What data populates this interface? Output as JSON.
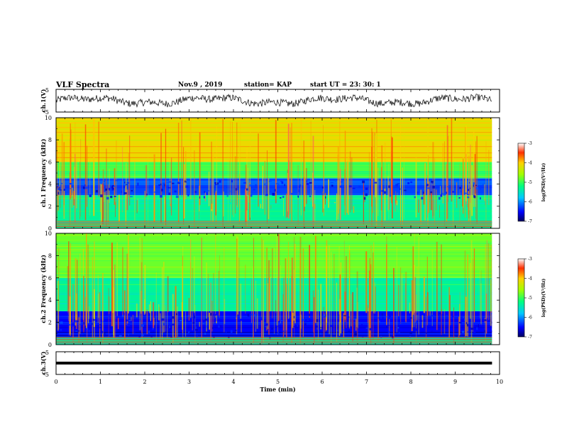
{
  "header": {
    "title": "VLF Spectra",
    "date": "Nov.9 , 2019",
    "station": "station= KAP",
    "start": "start UT = 23: 30: 1"
  },
  "chart_data": [
    {
      "type": "line",
      "title": "",
      "ylabel": "ch.1(V)",
      "ylim": [
        -5,
        5
      ],
      "yticks": [
        "5",
        "-5"
      ],
      "xlim": [
        0,
        10
      ],
      "series": [
        {
          "values_description_none": ""
        }
      ]
    },
    {
      "type": "heatmap",
      "ylabel": "ch.1 Frequency (kHz)",
      "ylim": [
        0,
        10
      ],
      "yticks": [
        "0",
        "2",
        "4",
        "6",
        "8",
        "10"
      ],
      "xlim": [
        0,
        10
      ],
      "data_end_min": 9.83,
      "colorbar": {
        "label": "log(PSD)(V²/Hz)",
        "range": [
          -7,
          -3
        ],
        "ticks": [
          "-3",
          "-4",
          "-5",
          "-6",
          "-7"
        ]
      },
      "bands": [
        {
          "from": 0,
          "to": 0.6,
          "level": 0.5
        },
        {
          "from": 0.6,
          "to": 3.0,
          "level": 0.42
        },
        {
          "from": 3.0,
          "to": 4.5,
          "level": 0.18
        },
        {
          "from": 4.5,
          "to": 6.0,
          "level": 0.5
        },
        {
          "from": 6.0,
          "to": 10.0,
          "level": 0.72
        }
      ]
    },
    {
      "type": "heatmap",
      "ylabel": "ch.2 Frequency (kHz)",
      "ylim": [
        0,
        10
      ],
      "yticks": [
        "0",
        "2",
        "4",
        "6",
        "8",
        "10"
      ],
      "xlim": [
        0,
        10
      ],
      "data_end_min": 9.83,
      "colorbar": {
        "label": "log(PSD)(V²/Hz)",
        "range": [
          -7,
          -3
        ],
        "ticks": [
          "-3",
          "-4",
          "-5",
          "-6",
          "-7"
        ]
      },
      "bands": [
        {
          "from": 0,
          "to": 0.6,
          "level": 0.45
        },
        {
          "from": 0.6,
          "to": 3.0,
          "level": 0.12
        },
        {
          "from": 3.0,
          "to": 6.0,
          "level": 0.42
        },
        {
          "from": 6.0,
          "to": 10.0,
          "level": 0.55
        }
      ]
    },
    {
      "type": "line",
      "ylabel": "ch.3(V)",
      "ylim": [
        -5,
        5
      ],
      "yticks": [
        "5",
        "-5"
      ],
      "xlim": [
        0,
        10
      ],
      "xlabel": "Time (min)",
      "xticks": [
        "0",
        "1",
        "2",
        "3",
        "4",
        "5",
        "6",
        "7",
        "8",
        "9",
        "10"
      ],
      "constant_value": 0
    }
  ],
  "colors": {
    "trace": "#000000",
    "axes": "#000000",
    "background": "#ffffff"
  }
}
